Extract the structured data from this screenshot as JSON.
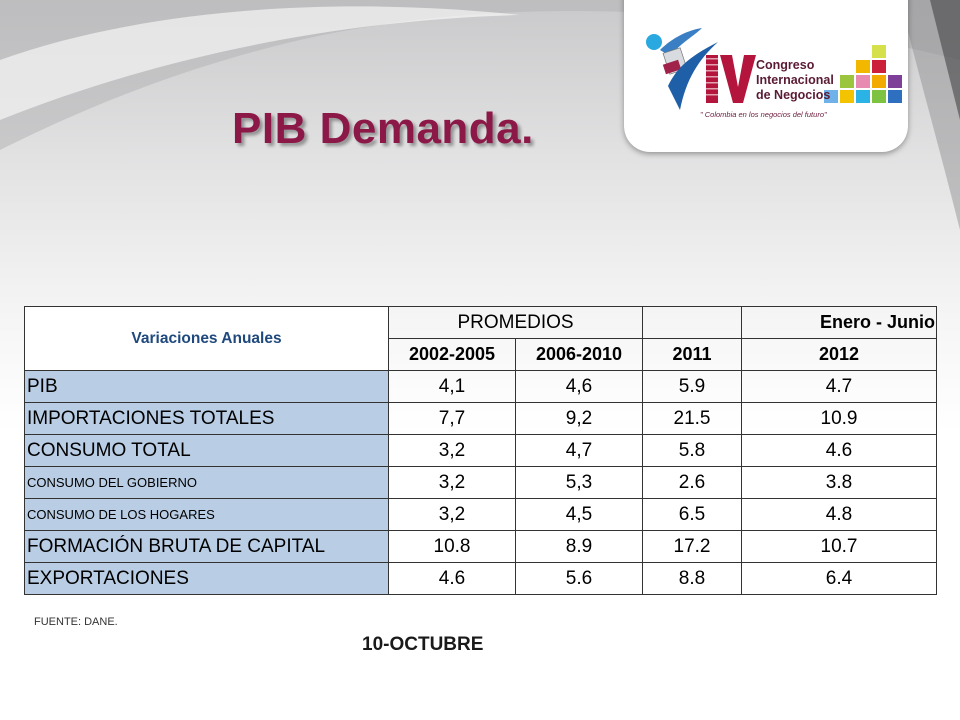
{
  "slide": {
    "title": "PIB Demanda.",
    "source": "FUENTE: DANE.",
    "date": "10-OCTUBRE"
  },
  "logo": {
    "numeral": "IV",
    "line1": "Congreso",
    "line2": "Internacional",
    "line3": "de Negocios",
    "slogan": "\" Colombia en los negocios del futuro\""
  },
  "table": {
    "header_label": "Variaciones Anuales",
    "promedios": "PROMEDIOS",
    "enero_junio": "Enero - Junio",
    "periods": [
      "2002-2005",
      "2006-2010",
      "2011",
      "2012"
    ],
    "rows": [
      {
        "label": "PIB",
        "values": [
          "4,1",
          "4,6",
          "5.9",
          "4.7"
        ]
      },
      {
        "label": "IMPORTACIONES TOTALES",
        "values": [
          "7,7",
          "9,2",
          "21.5",
          "10.9"
        ]
      },
      {
        "label": "CONSUMO TOTAL",
        "values": [
          "3,2",
          "4,7",
          "5.8",
          "4.6"
        ]
      },
      {
        "label": "CONSUMO DEL GOBIERNO",
        "values": [
          "3,2",
          "5,3",
          "2.6",
          "3.8"
        ]
      },
      {
        "label": "CONSUMO DE LOS HOGARES",
        "values": [
          "3,2",
          "4,5",
          "6.5",
          "4.8"
        ]
      },
      {
        "label": "FORMACIÓN BRUTA DE CAPITAL",
        "values": [
          "10.8",
          "8.9",
          "17.2",
          "10.7"
        ]
      },
      {
        "label": "EXPORTACIONES",
        "values": [
          "4.6",
          "5.6",
          "8.8",
          "6.4"
        ]
      }
    ]
  }
}
